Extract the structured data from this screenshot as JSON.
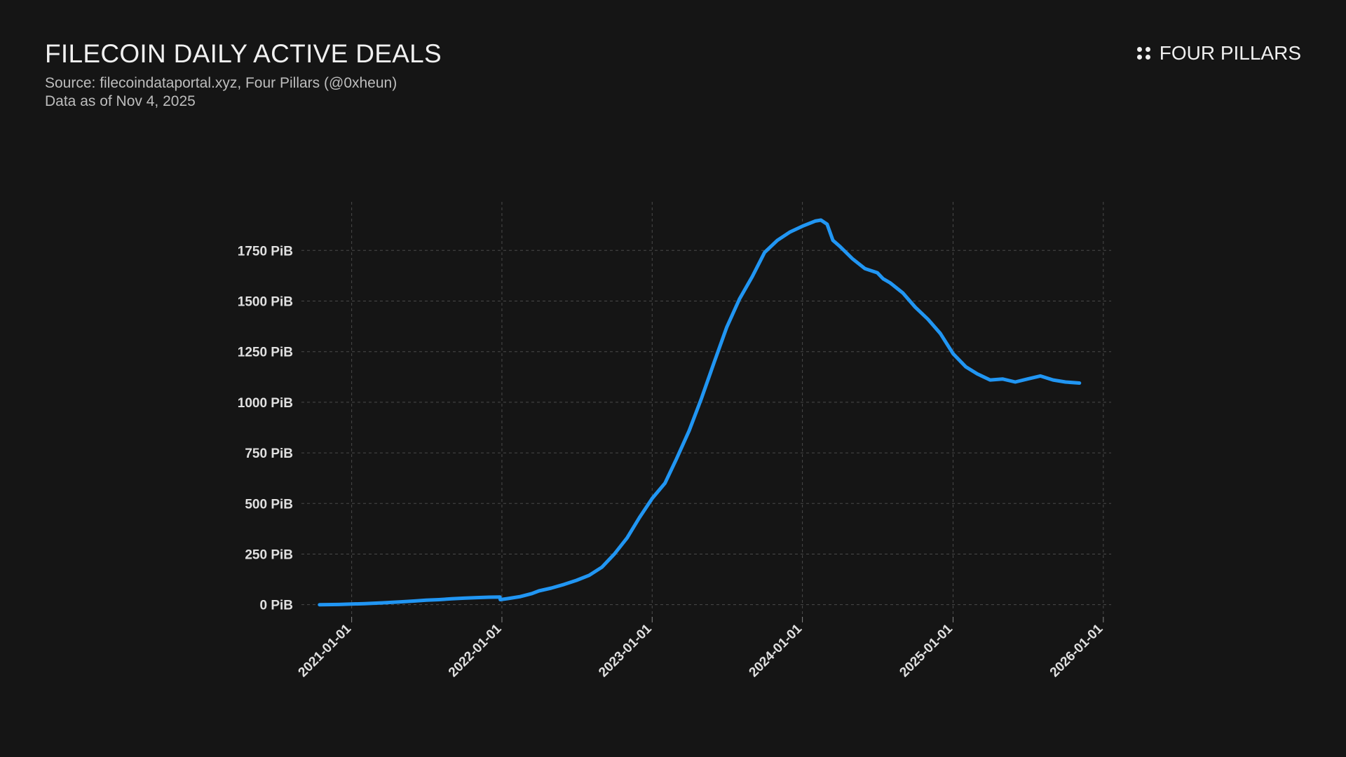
{
  "header": {
    "title": "FILECOIN DAILY ACTIVE DEALS",
    "source": "Source: filecoindataportal.xyz, Four Pillars (@0xheun)",
    "asof": "Data as of Nov 4, 2025",
    "brand": "FOUR PILLARS"
  },
  "colors": {
    "background": "#151515",
    "line": "#2196f3",
    "grid": "#4a4a4a",
    "text": "#e0e0e0"
  },
  "chart_data": {
    "type": "line",
    "title": "FILECOIN DAILY ACTIVE DEALS",
    "xlabel": "",
    "ylabel": "",
    "unit": "PiB",
    "y_ticks": [
      0,
      250,
      500,
      750,
      1000,
      1250,
      1500,
      1750
    ],
    "y_tick_labels": [
      "0 PiB",
      "250 PiB",
      "500 PiB",
      "750 PiB",
      "1000 PiB",
      "1250 PiB",
      "1500 PiB",
      "1750 PiB"
    ],
    "x_ticks": [
      "2021-01-01",
      "2022-01-01",
      "2023-01-01",
      "2024-01-01",
      "2025-01-01",
      "2026-01-01"
    ],
    "ylim": [
      -60,
      1990
    ],
    "xlim": [
      "2020-09-01",
      "2026-01-20"
    ],
    "grid": true,
    "series": [
      {
        "x": [
          "2020-10-15",
          "2020-12-01",
          "2021-01-01",
          "2021-02-01",
          "2021-03-15",
          "2021-05-01",
          "2021-06-01",
          "2021-07-01",
          "2021-08-01",
          "2021-09-01",
          "2021-10-01",
          "2021-11-01",
          "2021-12-01",
          "2021-12-27",
          "2021-12-28",
          "2022-01-15",
          "2022-02-15",
          "2022-03-15",
          "2022-04-01",
          "2022-05-01",
          "2022-06-01",
          "2022-07-01",
          "2022-08-01",
          "2022-09-01",
          "2022-10-01",
          "2022-11-01",
          "2022-12-01",
          "2023-01-01",
          "2023-02-01",
          "2023-03-01",
          "2023-04-01",
          "2023-05-01",
          "2023-06-01",
          "2023-07-01",
          "2023-08-01",
          "2023-09-01",
          "2023-10-01",
          "2023-11-01",
          "2023-12-01",
          "2024-01-01",
          "2024-02-01",
          "2024-02-15",
          "2024-03-01",
          "2024-03-15",
          "2024-04-01",
          "2024-05-01",
          "2024-06-01",
          "2024-07-01",
          "2024-07-15",
          "2024-08-01",
          "2024-09-01",
          "2024-10-01",
          "2024-11-01",
          "2024-12-01",
          "2025-01-01",
          "2025-02-01",
          "2025-03-01",
          "2025-04-01",
          "2025-05-01",
          "2025-06-01",
          "2025-07-01",
          "2025-08-01",
          "2025-09-01",
          "2025-10-01",
          "2025-11-04"
        ],
        "y": [
          0,
          1,
          3,
          5,
          9,
          14,
          18,
          22,
          25,
          29,
          32,
          35,
          37,
          38,
          25,
          30,
          40,
          55,
          68,
          82,
          100,
          120,
          145,
          185,
          250,
          330,
          430,
          525,
          600,
          720,
          860,
          1020,
          1200,
          1370,
          1510,
          1620,
          1740,
          1800,
          1840,
          1870,
          1895,
          1900,
          1880,
          1800,
          1770,
          1710,
          1660,
          1640,
          1610,
          1590,
          1540,
          1470,
          1410,
          1340,
          1240,
          1175,
          1140,
          1110,
          1115,
          1100,
          1115,
          1130,
          1110,
          1100,
          1095
        ]
      }
    ]
  }
}
